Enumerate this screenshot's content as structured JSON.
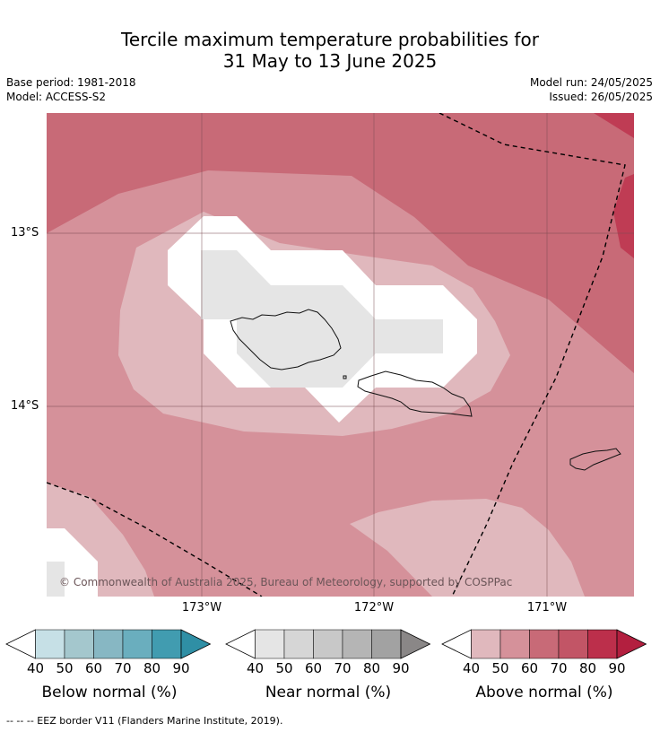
{
  "title": {
    "line1": "Tercile maximum temperature probabilities for",
    "line2": "31 May to 13 June 2025"
  },
  "meta": {
    "base_period": "Base period: 1981-2018",
    "model": "Model: ACCESS-S2",
    "model_run": "Model run: 24/05/2025",
    "issued": "Issued: 26/05/2025"
  },
  "map": {
    "copyright": "© Commonwealth of Australia 2025, Bureau of Meteorology, supported by COSPPac",
    "lat_labels": [
      "13°S",
      "14°S"
    ],
    "lon_labels": [
      "173°W",
      "172°W",
      "171°W"
    ],
    "colors": {
      "above_50": "#e0b8bd",
      "above_60": "#d5919a",
      "above_70": "#c86a77",
      "above_80": "#bf3c54",
      "near_50": "#e5e5e5",
      "no_signal": "#ffffff"
    }
  },
  "legends": [
    {
      "title": "Below normal (%)",
      "ticks": [
        "40",
        "50",
        "60",
        "70",
        "80",
        "90"
      ],
      "colors": [
        "#ffffff",
        "#c6e0e6",
        "#a4c7cd",
        "#87b7c3",
        "#6aaebe",
        "#419cb0",
        "#2f8fa5"
      ]
    },
    {
      "title": "Near normal (%)",
      "ticks": [
        "40",
        "50",
        "60",
        "70",
        "80",
        "90"
      ],
      "colors": [
        "#ffffff",
        "#e5e5e5",
        "#d6d6d6",
        "#c8c8c8",
        "#b5b5b5",
        "#a2a2a2",
        "#8a8787"
      ]
    },
    {
      "title": "Above normal (%)",
      "ticks": [
        "40",
        "50",
        "60",
        "70",
        "80",
        "90"
      ],
      "colors": [
        "#ffffff",
        "#e0b8bd",
        "#d5919a",
        "#c86a77",
        "#c25566",
        "#bc2f4b",
        "#b31f3f"
      ]
    }
  ],
  "eez_note": "-- -- -- EEZ border V11 (Flanders Marine Institute, 2019)."
}
